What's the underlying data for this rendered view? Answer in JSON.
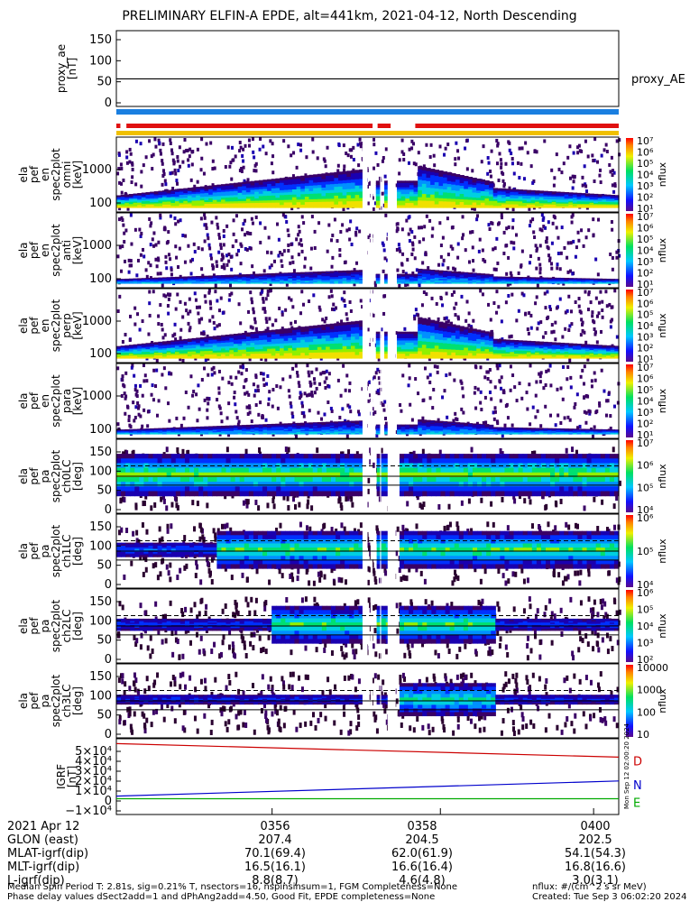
{
  "title": "PRELIMINARY ELFIN-A EPDE, alt=441km, 2021-04-12, North Descending",
  "chart_data": {
    "type": "heatmap",
    "time_ticks": [
      "0356",
      "0358",
      "0400"
    ],
    "panels": [
      {
        "id": "proxy_ae",
        "type": "line",
        "ylabel": [
          "proxy_ae",
          "[nT]"
        ],
        "yticks": [
          "0",
          "50",
          "100",
          "150"
        ],
        "ylim": [
          -10,
          155
        ],
        "series": [
          {
            "name": "proxy_AE",
            "values": [
              {
                "x": 0,
                "y": 50
              },
              {
                "x": 1,
                "y": 50
              }
            ]
          }
        ],
        "legend": [
          "proxy_AE"
        ]
      },
      {
        "id": "spec_1",
        "type": "heatmap",
        "ylabel": [
          "ela",
          "pef",
          "en",
          "spec2plot",
          "omni",
          "[keV]"
        ],
        "yticks": [
          "100",
          "1000"
        ],
        "scale": "log",
        "cbar_ticks": [
          "10¹",
          "10²",
          "10³",
          "10⁴",
          "10⁵",
          "10⁶",
          "10⁷"
        ],
        "cbar_label": "nflux"
      },
      {
        "id": "spec_2",
        "type": "heatmap",
        "ylabel": [
          "ela",
          "pef",
          "en",
          "spec2plot",
          "anti",
          "[keV]"
        ],
        "yticks": [
          "100",
          "1000"
        ],
        "scale": "log",
        "cbar_ticks": [
          "10¹",
          "10²",
          "10³",
          "10⁴",
          "10⁵",
          "10⁶",
          "10⁷"
        ],
        "cbar_label": "nflux"
      },
      {
        "id": "spec_3",
        "type": "heatmap",
        "ylabel": [
          "ela",
          "pef",
          "en",
          "spec2plot",
          "perp",
          "[keV]"
        ],
        "yticks": [
          "100",
          "1000"
        ],
        "scale": "log",
        "cbar_ticks": [
          "10¹",
          "10²",
          "10³",
          "10⁴",
          "10⁵",
          "10⁶",
          "10⁷"
        ],
        "cbar_label": "nflux"
      },
      {
        "id": "spec_4",
        "type": "heatmap",
        "ylabel": [
          "ela",
          "pef",
          "en",
          "spec2plot",
          "para",
          "[keV]"
        ],
        "yticks": [
          "100",
          "1000"
        ],
        "scale": "log",
        "cbar_ticks": [
          "10¹",
          "10²",
          "10³",
          "10⁴",
          "10⁵",
          "10⁶",
          "10⁷"
        ],
        "cbar_label": "nflux"
      },
      {
        "id": "pa_ch0",
        "type": "heatmap",
        "ylabel": [
          "ela",
          "pef",
          "pa",
          "spec2plot",
          "ch0LC",
          "[deg]"
        ],
        "yticks": [
          "0",
          "50",
          "100",
          "150"
        ],
        "ylim": [
          0,
          180
        ],
        "cbar_ticks": [
          "10⁴",
          "10⁵",
          "10⁶",
          "10⁷"
        ],
        "cbar_label": "nflux"
      },
      {
        "id": "pa_ch1",
        "type": "heatmap",
        "ylabel": [
          "ela",
          "pef",
          "pa",
          "spec2plot",
          "ch1LC",
          "[deg]"
        ],
        "yticks": [
          "0",
          "50",
          "100",
          "150"
        ],
        "ylim": [
          0,
          180
        ],
        "cbar_ticks": [
          "10⁴",
          "10⁵",
          "10⁶"
        ],
        "cbar_label": "nflux"
      },
      {
        "id": "pa_ch2",
        "type": "heatmap",
        "ylabel": [
          "ela",
          "pef",
          "pa",
          "spec2plot",
          "ch2LC",
          "[deg]"
        ],
        "yticks": [
          "0",
          "50",
          "100",
          "150"
        ],
        "ylim": [
          0,
          180
        ],
        "cbar_ticks": [
          "10²",
          "10³",
          "10⁴",
          "10⁵",
          "10⁶"
        ],
        "cbar_label": "nflux"
      },
      {
        "id": "pa_ch3",
        "type": "heatmap",
        "ylabel": [
          "ela",
          "pef",
          "pa",
          "spec2plot",
          "ch3LC",
          "[deg]"
        ],
        "yticks": [
          "0",
          "50",
          "100",
          "150"
        ],
        "ylim": [
          0,
          180
        ],
        "cbar_ticks": [
          "10",
          "100",
          "1000",
          "10000"
        ],
        "cbar_label": "nflux"
      },
      {
        "id": "igrf",
        "type": "line",
        "ylabel": [
          "IGRF",
          "[nT]"
        ],
        "yticks": [
          "−1×10⁴",
          "0",
          "1×10⁴",
          "2×10⁴",
          "3×10⁴",
          "4×10⁴",
          "5×10⁴"
        ],
        "ylim": [
          -15000,
          55000
        ],
        "series": [
          {
            "name": "D",
            "color": "#cc0000",
            "values": [
              {
                "x": 0,
                "y": 50500
              },
              {
                "x": 1,
                "y": 38000
              }
            ]
          },
          {
            "name": "N",
            "color": "#0000cc",
            "values": [
              {
                "x": 0,
                "y": 2000
              },
              {
                "x": 1,
                "y": 16000
              }
            ]
          },
          {
            "name": "E",
            "color": "#00aa00",
            "values": [
              {
                "x": 0,
                "y": -400
              },
              {
                "x": 1,
                "y": -400
              }
            ]
          }
        ],
        "side_note": "Mon Sep 12 02:00:20 2024"
      }
    ]
  },
  "footer": {
    "rows": [
      {
        "label": "2021 Apr 12",
        "v1": "0356",
        "v2": "0358",
        "v3": "0400"
      },
      {
        "label": "GLON (east)",
        "v1": "207.4",
        "v2": "204.5",
        "v3": "202.5"
      },
      {
        "label": "MLAT-igrf(dip)",
        "v1": "70.1(69.4)",
        "v2": "62.0(61.9)",
        "v3": "54.1(54.3)"
      },
      {
        "label": "MLT-igrf(dip)",
        "v1": "16.5(16.1)",
        "v2": "16.6(16.4)",
        "v3": "16.8(16.6)"
      },
      {
        "label": "L-igrf(dip)",
        "v1": "8.8(8.7)",
        "v2": "4.6(4.8)",
        "v3": "3.0(3.1)"
      }
    ],
    "note_line1": "Median Spin Period T: 2.81s, sig=0.21% T, nsectors=16, nspinsinsum=1, FGM Completeness=None",
    "note_line2": "Phase delay values dSect2add=1 and dPhAng2add=4.50, Good Fit, EPDE completeness=None",
    "units": "nflux: #/(cm^2 s sr MeV)",
    "created": "Created: Tue Sep  3 06:02:20 2024"
  }
}
